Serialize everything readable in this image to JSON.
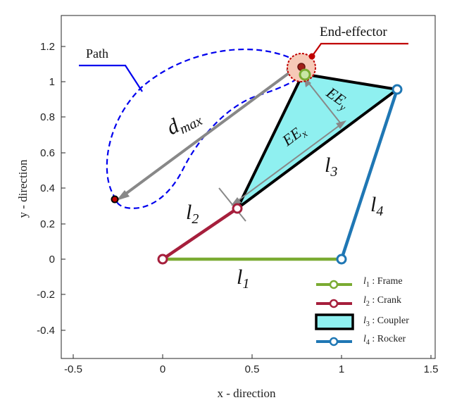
{
  "axes": {
    "xlabel": "x - direction",
    "ylabel": "y - direction",
    "xticks": [
      "-0.5",
      "0",
      "0.5",
      "1",
      "1.5"
    ],
    "yticks": [
      "1.2",
      "1",
      "0.8",
      "0.6",
      "0.4",
      "0.2",
      "0",
      "-0.2",
      "-0.4"
    ],
    "xlim": [
      -0.55,
      1.55
    ],
    "ylim": [
      -0.58,
      1.35
    ]
  },
  "annotations": {
    "path": "Path",
    "end_effector": "End-effector",
    "dmax_main": "d",
    "dmax_sub": "max",
    "eex_main": "EE",
    "eex_sub": "x",
    "eey_main": "EE",
    "eey_sub": "y"
  },
  "link_labels": {
    "l1": {
      "main": "l",
      "sub": "1"
    },
    "l2": {
      "main": "l",
      "sub": "2"
    },
    "l3": {
      "main": "l",
      "sub": "3"
    },
    "l4": {
      "main": "l",
      "sub": "4"
    }
  },
  "legend": [
    {
      "main": "l",
      "sub": "1",
      "text": " : Frame",
      "color": "#7aab32"
    },
    {
      "main": "l",
      "sub": "2",
      "text": " : Crank",
      "color": "#a61f3c"
    },
    {
      "main": "l",
      "sub": "3",
      "text": " : Coupler",
      "color": "#8ff0f0"
    },
    {
      "main": "l",
      "sub": "4",
      "text": " : Rocker",
      "color": "#1f77b4"
    }
  ],
  "colors": {
    "frame": "#7aab32",
    "crank": "#a61f3c",
    "coupler_fill": "#8ff0f0",
    "rocker": "#1f77b4",
    "path": "#0000ee",
    "end_effector": "#c00000",
    "arrow": "#888888"
  }
}
